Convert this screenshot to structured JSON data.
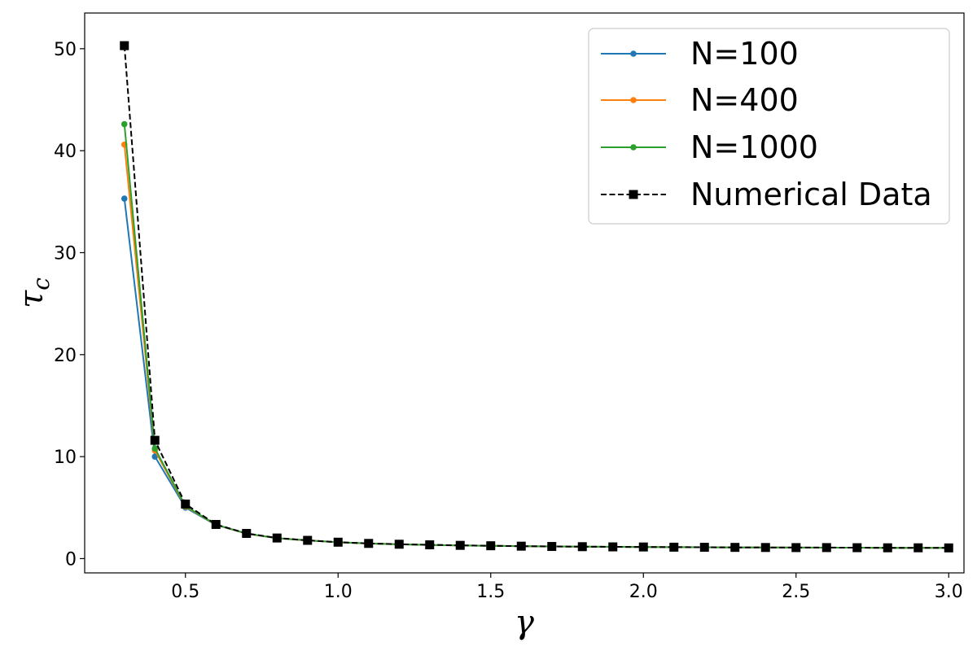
{
  "chart_data": {
    "type": "line",
    "title": "",
    "xlabel": "γ",
    "ylabel": "τ",
    "ylabel_sub": "c",
    "xlim": [
      0.17,
      3.05
    ],
    "ylim": [
      -1.4,
      53.5
    ],
    "grid": false,
    "legend_position": "top-right",
    "x_ticks": [
      0.5,
      1.0,
      1.5,
      2.0,
      2.5,
      3.0
    ],
    "x_tick_labels": [
      "0.5",
      "1.0",
      "1.5",
      "2.0",
      "2.5",
      "3.0"
    ],
    "y_ticks": [
      0,
      10,
      20,
      30,
      40,
      50
    ],
    "y_tick_labels": [
      "0",
      "10",
      "20",
      "30",
      "40",
      "50"
    ],
    "x": [
      0.3,
      0.4,
      0.5,
      0.6,
      0.7,
      0.8,
      0.9,
      1.0,
      1.1,
      1.2,
      1.3,
      1.4,
      1.5,
      1.6,
      1.7,
      1.8,
      1.9,
      2.0,
      2.1,
      2.2,
      2.3,
      2.4,
      2.5,
      2.6,
      2.7,
      2.8,
      2.9,
      3.0
    ],
    "series": [
      {
        "name": "N=100",
        "color": "#1f77b4",
        "marker": "circle",
        "linestyle": "solid",
        "values": [
          35.3,
          10.0,
          5.0,
          3.3,
          2.45,
          2.0,
          1.78,
          1.6,
          1.48,
          1.4,
          1.34,
          1.29,
          1.25,
          1.22,
          1.19,
          1.17,
          1.15,
          1.14,
          1.12,
          1.11,
          1.1,
          1.09,
          1.08,
          1.07,
          1.07,
          1.06,
          1.05,
          1.05
        ]
      },
      {
        "name": "N=400",
        "color": "#ff7f0e",
        "marker": "circle",
        "linestyle": "solid",
        "values": [
          40.6,
          10.6,
          5.1,
          3.32,
          2.45,
          2.0,
          1.78,
          1.6,
          1.48,
          1.4,
          1.34,
          1.29,
          1.25,
          1.22,
          1.19,
          1.17,
          1.15,
          1.14,
          1.12,
          1.11,
          1.1,
          1.09,
          1.08,
          1.07,
          1.07,
          1.06,
          1.05,
          1.05
        ]
      },
      {
        "name": "N=1000",
        "color": "#2ca02c",
        "marker": "circle",
        "linestyle": "solid",
        "values": [
          42.6,
          10.8,
          5.15,
          3.33,
          2.46,
          2.0,
          1.78,
          1.6,
          1.48,
          1.4,
          1.34,
          1.29,
          1.25,
          1.22,
          1.19,
          1.17,
          1.15,
          1.14,
          1.12,
          1.11,
          1.1,
          1.09,
          1.08,
          1.07,
          1.07,
          1.06,
          1.05,
          1.05
        ]
      },
      {
        "name": "Numerical Data",
        "color": "#000000",
        "marker": "square",
        "linestyle": "dashed",
        "values": [
          50.3,
          11.6,
          5.35,
          3.35,
          2.47,
          2.02,
          1.79,
          1.61,
          1.49,
          1.41,
          1.35,
          1.3,
          1.26,
          1.22,
          1.19,
          1.17,
          1.15,
          1.14,
          1.12,
          1.11,
          1.1,
          1.09,
          1.08,
          1.08,
          1.07,
          1.06,
          1.06,
          1.05
        ]
      }
    ]
  }
}
